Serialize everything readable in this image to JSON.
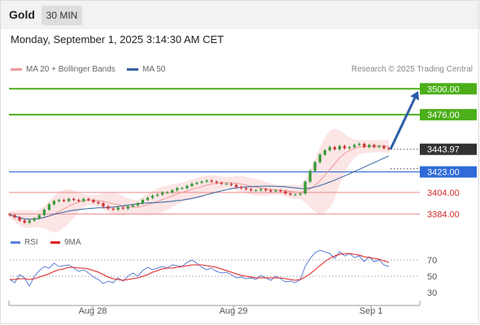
{
  "header": {
    "instrument": "Gold",
    "timeframe": "30 MIN",
    "timestamp": "Monday, September 1, 2025 3:14:30 AM CET"
  },
  "legend": {
    "ma20_label": "MA 20 + Bollinger Bands",
    "ma50_label": "MA 50",
    "rsi_label": "RSI",
    "rsi_ma_label": "9MA",
    "credit": "Research © 2025 Trading Central"
  },
  "colors": {
    "target": "#4caf1a",
    "pivot": "#2f6bd8",
    "support": "#e98a8a",
    "price_tag": "#333333",
    "ma20": "#ef9a9a",
    "ma50": "#34629e",
    "bollinger_fill": "#fbe1e1",
    "candle_up": "#3a9a3a",
    "candle_down": "#cc3333",
    "arrow": "#2e5ea8",
    "rsi": "#5b7fd6",
    "rsi_ma": "#e02020"
  },
  "chart_data": [
    {
      "type": "candlestick",
      "xlabel": "",
      "ylabel": "",
      "x_tick_labels": [
        "Aug 28",
        "Aug 29",
        "Sep 1"
      ],
      "ylim": [
        3370,
        3510
      ],
      "levels": [
        {
          "name": "target_2",
          "value": 3500.0,
          "label": "3500.00",
          "style": "resistance"
        },
        {
          "name": "target_1",
          "value": 3476.0,
          "label": "3476.00",
          "style": "resistance"
        },
        {
          "name": "last_price",
          "value": 3443.97,
          "label": "3443.97",
          "style": "last"
        },
        {
          "name": "pivot",
          "value": 3423.0,
          "label": "3423.00",
          "style": "pivot"
        },
        {
          "name": "support_1",
          "value": 3404.0,
          "label": "3404.00",
          "style": "support"
        },
        {
          "name": "support_2",
          "value": 3384.0,
          "label": "3384.00",
          "style": "support"
        }
      ],
      "forecast_arrow": {
        "from": 3444,
        "to": 3498
      },
      "close": [
        3383,
        3381,
        3378,
        3376,
        3378,
        3380,
        3383,
        3388,
        3393,
        3396,
        3397,
        3396,
        3398,
        3397,
        3396,
        3398,
        3397,
        3395,
        3394,
        3391,
        3389,
        3388,
        3390,
        3389,
        3391,
        3392,
        3394,
        3397,
        3399,
        3401,
        3402,
        3404,
        3404,
        3406,
        3408,
        3408,
        3410,
        3412,
        3413,
        3414,
        3415,
        3414,
        3413,
        3412,
        3412,
        3411,
        3409,
        3408,
        3407,
        3406,
        3406,
        3407,
        3406,
        3405,
        3406,
        3405,
        3403,
        3402,
        3402,
        3403,
        3414,
        3424,
        3432,
        3439,
        3443,
        3446,
        3444,
        3447,
        3445,
        3446,
        3448,
        3449,
        3446,
        3448,
        3446,
        3447,
        3445,
        3444
      ]
    },
    {
      "type": "line",
      "name": "RSI panel",
      "ylim": [
        20,
        90
      ],
      "y_ticks": [
        30,
        50,
        70
      ],
      "series": [
        {
          "name": "RSI",
          "values": [
            46,
            42,
            52,
            48,
            38,
            50,
            57,
            62,
            60,
            66,
            62,
            63,
            64,
            60,
            56,
            58,
            54,
            49,
            46,
            41,
            44,
            42,
            48,
            44,
            50,
            54,
            50,
            57,
            61,
            58,
            60,
            62,
            60,
            64,
            63,
            62,
            67,
            70,
            66,
            61,
            58,
            60,
            56,
            54,
            55,
            52,
            48,
            49,
            47,
            48,
            46,
            51,
            48,
            45,
            50,
            47,
            43,
            44,
            42,
            46,
            62,
            72,
            79,
            82,
            80,
            78,
            72,
            80,
            75,
            78,
            73,
            75,
            68,
            74,
            68,
            70,
            64,
            62
          ]
        },
        {
          "name": "9MA",
          "values": [
            46,
            46,
            47,
            47,
            46,
            47,
            49,
            51,
            53,
            56,
            58,
            59,
            61,
            61,
            60,
            60,
            59,
            57,
            55,
            52,
            49,
            47,
            46,
            45,
            46,
            47,
            48,
            50,
            52,
            55,
            57,
            59,
            60,
            60,
            61,
            62,
            63,
            64,
            64,
            64,
            63,
            62,
            61,
            59,
            57,
            55,
            53,
            51,
            50,
            49,
            48,
            48,
            48,
            48,
            48,
            48,
            47,
            46,
            45,
            46,
            49,
            53,
            58,
            63,
            68,
            72,
            75,
            77,
            78,
            78,
            77,
            76,
            74,
            73,
            72,
            71,
            69,
            67
          ]
        }
      ]
    }
  ]
}
